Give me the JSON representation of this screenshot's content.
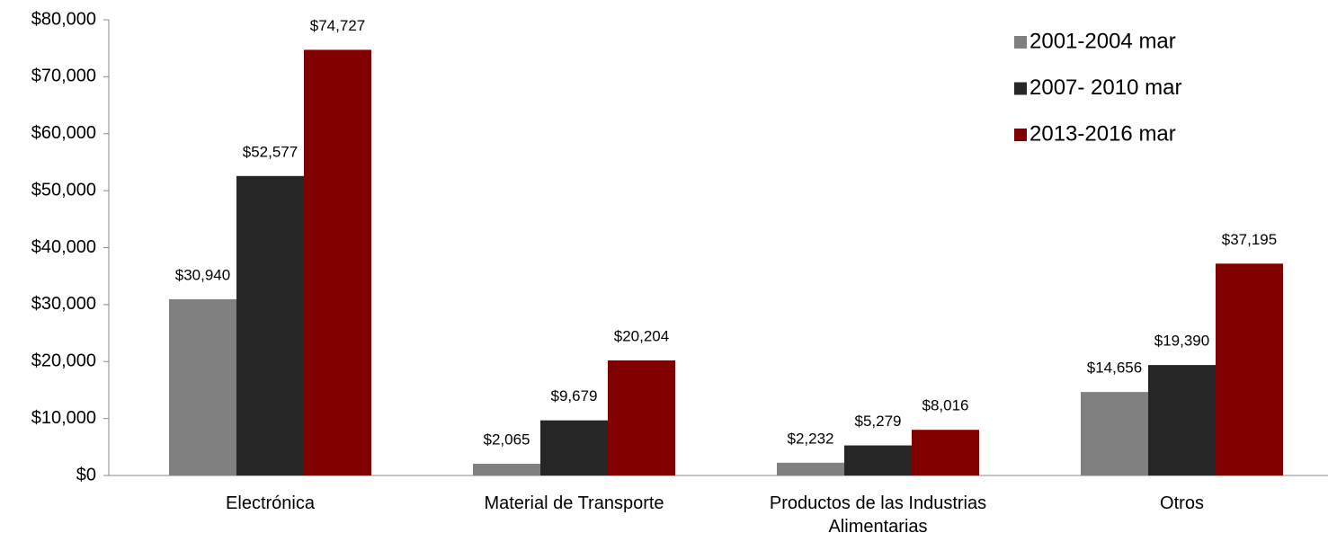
{
  "chart_data": {
    "type": "bar",
    "categories": [
      "Electrónica",
      "Material de Transporte",
      "Productos de las Industrias Alimentarias",
      "Otros"
    ],
    "series": [
      {
        "name": "2001-2004 mar",
        "color": "#808080",
        "values": [
          30940,
          2065,
          2232,
          14656
        ],
        "value_labels": [
          "$30,940",
          "$2,065",
          "$2,232",
          "$14,656"
        ]
      },
      {
        "name": "2007- 2010 mar",
        "color": "#262626",
        "values": [
          52577,
          9679,
          5279,
          19390
        ],
        "value_labels": [
          "$52,577",
          "$9,679",
          "$5,279",
          "$19,390"
        ]
      },
      {
        "name": "2013-2016 mar",
        "color": "#800000",
        "values": [
          74727,
          20204,
          8016,
          37195
        ],
        "value_labels": [
          "$74,727",
          "$20,204",
          "$8,016",
          "$37,195"
        ]
      }
    ],
    "ylim": [
      0,
      80000
    ],
    "yticks": [
      {
        "value": 0,
        "label": "$0"
      },
      {
        "value": 10000,
        "label": "$10,000"
      },
      {
        "value": 20000,
        "label": "$20,000"
      },
      {
        "value": 30000,
        "label": "$30,000"
      },
      {
        "value": 40000,
        "label": "$40,000"
      },
      {
        "value": 50000,
        "label": "$50,000"
      },
      {
        "value": 60000,
        "label": "$60,000"
      },
      {
        "value": 70000,
        "label": "$70,000"
      },
      {
        "value": 80000,
        "label": "$80,000"
      }
    ],
    "grid": false,
    "legend": "top-right"
  }
}
